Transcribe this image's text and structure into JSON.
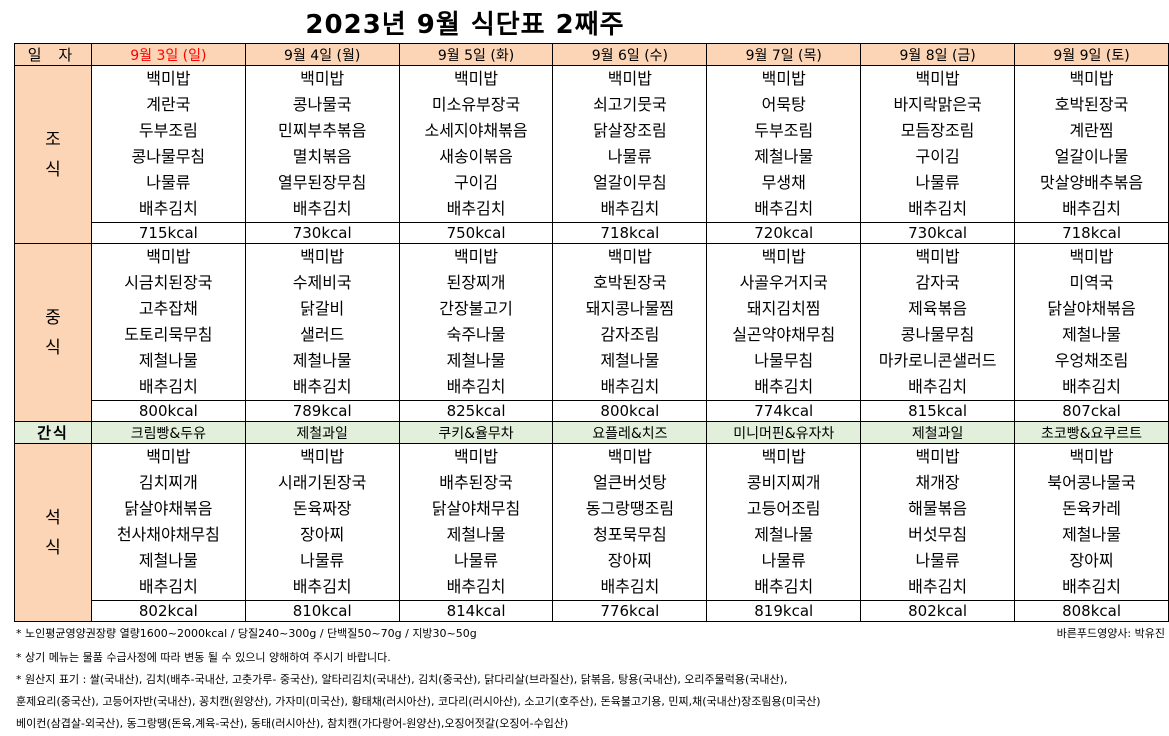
{
  "title": "2023년 9월  식단표 2째주",
  "header_label": "일 자",
  "days": [
    "9월 3일 (일)",
    "9월 4일 (월)",
    "9월 5일 (화)",
    "9월 6일 (수)",
    "9월 7일 (목)",
    "9월 8일 (금)",
    "9월 9일 (토)"
  ],
  "meals": {
    "breakfast": {
      "label": [
        "조",
        "식"
      ],
      "dishes": [
        [
          "백미밥",
          "계란국",
          "두부조림",
          "콩나물무침",
          "나물류",
          "배추김치"
        ],
        [
          "백미밥",
          "콩나물국",
          "민찌부추볶음",
          "멸치볶음",
          "열무된장무침",
          "배추김치"
        ],
        [
          "백미밥",
          "미소유부장국",
          "소세지야채볶음",
          "새송이볶음",
          "구이김",
          "배추김치"
        ],
        [
          "백미밥",
          "쇠고기뭇국",
          "닭살장조림",
          "나물류",
          "얼갈이무침",
          "배추김치"
        ],
        [
          "백미밥",
          "어묵탕",
          "두부조림",
          "제철나물",
          "무생채",
          "배추김치"
        ],
        [
          "백미밥",
          "바지락맑은국",
          "모듬장조림",
          "구이김",
          "나물류",
          "배추김치"
        ],
        [
          "백미밥",
          "호박된장국",
          "계란찜",
          "얼갈이나물",
          "맛살양배추볶음",
          "배추김치"
        ]
      ],
      "kcal": [
        "715kcal",
        "730kcal",
        "750kcal",
        "718kcal",
        "720kcal",
        "730kcal",
        "718kcal"
      ]
    },
    "lunch": {
      "label": [
        "중",
        "식"
      ],
      "dishes": [
        [
          "백미밥",
          "시금치된장국",
          "고추잡채",
          "도토리묵무침",
          "제철나물",
          "배추김치"
        ],
        [
          "백미밥",
          "수제비국",
          "닭갈비",
          "샐러드",
          "제철나물",
          "배추김치"
        ],
        [
          "백미밥",
          "된장찌개",
          "간장불고기",
          "숙주나물",
          "제철나물",
          "배추김치"
        ],
        [
          "백미밥",
          "호박된장국",
          "돼지콩나물찜",
          "감자조림",
          "제철나물",
          "배추김치"
        ],
        [
          "백미밥",
          "사골우거지국",
          "돼지김치찜",
          "실곤약야채무침",
          "나물무침",
          "배추김치"
        ],
        [
          "백미밥",
          "감자국",
          "제육볶음",
          "콩나물무침",
          "마카로니콘샐러드",
          "배추김치"
        ],
        [
          "백미밥",
          "미역국",
          "닭살야채볶음",
          "제철나물",
          "우엉채조림",
          "배추김치"
        ]
      ],
      "kcal": [
        "800kcal",
        "789kcal",
        "825kcal",
        "800kcal",
        "774kcal",
        "815kcal",
        "807ckal"
      ]
    },
    "snack": {
      "label": "간식",
      "items": [
        "크림빵&두유",
        "제철과일",
        "쿠키&율무차",
        "요플레&치즈",
        "미니머핀&유자차",
        "제철과일",
        "초코빵&요쿠르트"
      ]
    },
    "dinner": {
      "label": [
        "석",
        "식"
      ],
      "dishes": [
        [
          "백미밥",
          "김치찌개",
          "닭살야채볶음",
          "천사채야채무침",
          "제철나물",
          "배추김치"
        ],
        [
          "백미밥",
          "시래기된장국",
          "돈육짜장",
          "장아찌",
          "나물류",
          "배추김치"
        ],
        [
          "백미밥",
          "배추된장국",
          "닭살야채무침",
          "제철나물",
          "나물류",
          "배추김치"
        ],
        [
          "백미밥",
          "얼큰버섯탕",
          "동그랑땡조림",
          "청포묵무침",
          "장아찌",
          "배추김치"
        ],
        [
          "백미밥",
          "콩비지찌개",
          "고등어조림",
          "제철나물",
          "나물류",
          "배추김치"
        ],
        [
          "백미밥",
          "채개장",
          "해물볶음",
          "버섯무침",
          "나물류",
          "배추김치"
        ],
        [
          "백미밥",
          "북어콩나물국",
          "돈육카레",
          "제철나물",
          "장아찌",
          "배추김치"
        ]
      ],
      "kcal": [
        "802kcal",
        "810kcal",
        "814kcal",
        "776kcal",
        "819kcal",
        "802kcal",
        "808kcal"
      ]
    }
  },
  "notes": [
    "*  노인평균영양권장량 열량1600~2000kcal / 당질240~300g / 단백질50~70g / 지방30~50g",
    "*  상기 메뉴는 물품 수급사정에 따라 변동 될 수 있으니 양해하여 주시기 바랍니다.",
    "*  원산지 표기 : 쌀(국내산), 김치(배추-국내산, 고춧가루- 중국산), 알타리김치(국내산), 김치(중국산), 닭다리살(브라질산), 닭볶음, 탕용(국내산), 오리주물럭용(국내산),",
    "    훈제요리(중국산), 고등어자반(국내산), 꽁치캔(원양산), 가자미(미국산), 황태채(러시아산), 코다리(러시아산), 소고기(호주산), 돈육불고기용, 민찌,채(국내산)장조림용(미국산)",
    "     베이컨(삼겹살-외국산), 동그랑땡(돈육,계육-국산), 동태(러시아산), 참치캔(가다랑어-원양산),오징어젓갈(오징어-수입산)"
  ],
  "dietitian": "바른푸드영양사: 박유진",
  "colors": {
    "header_bg": "#fbd5b5",
    "snack_bg": "#e2efda",
    "sunday_text": "#ff0000"
  }
}
